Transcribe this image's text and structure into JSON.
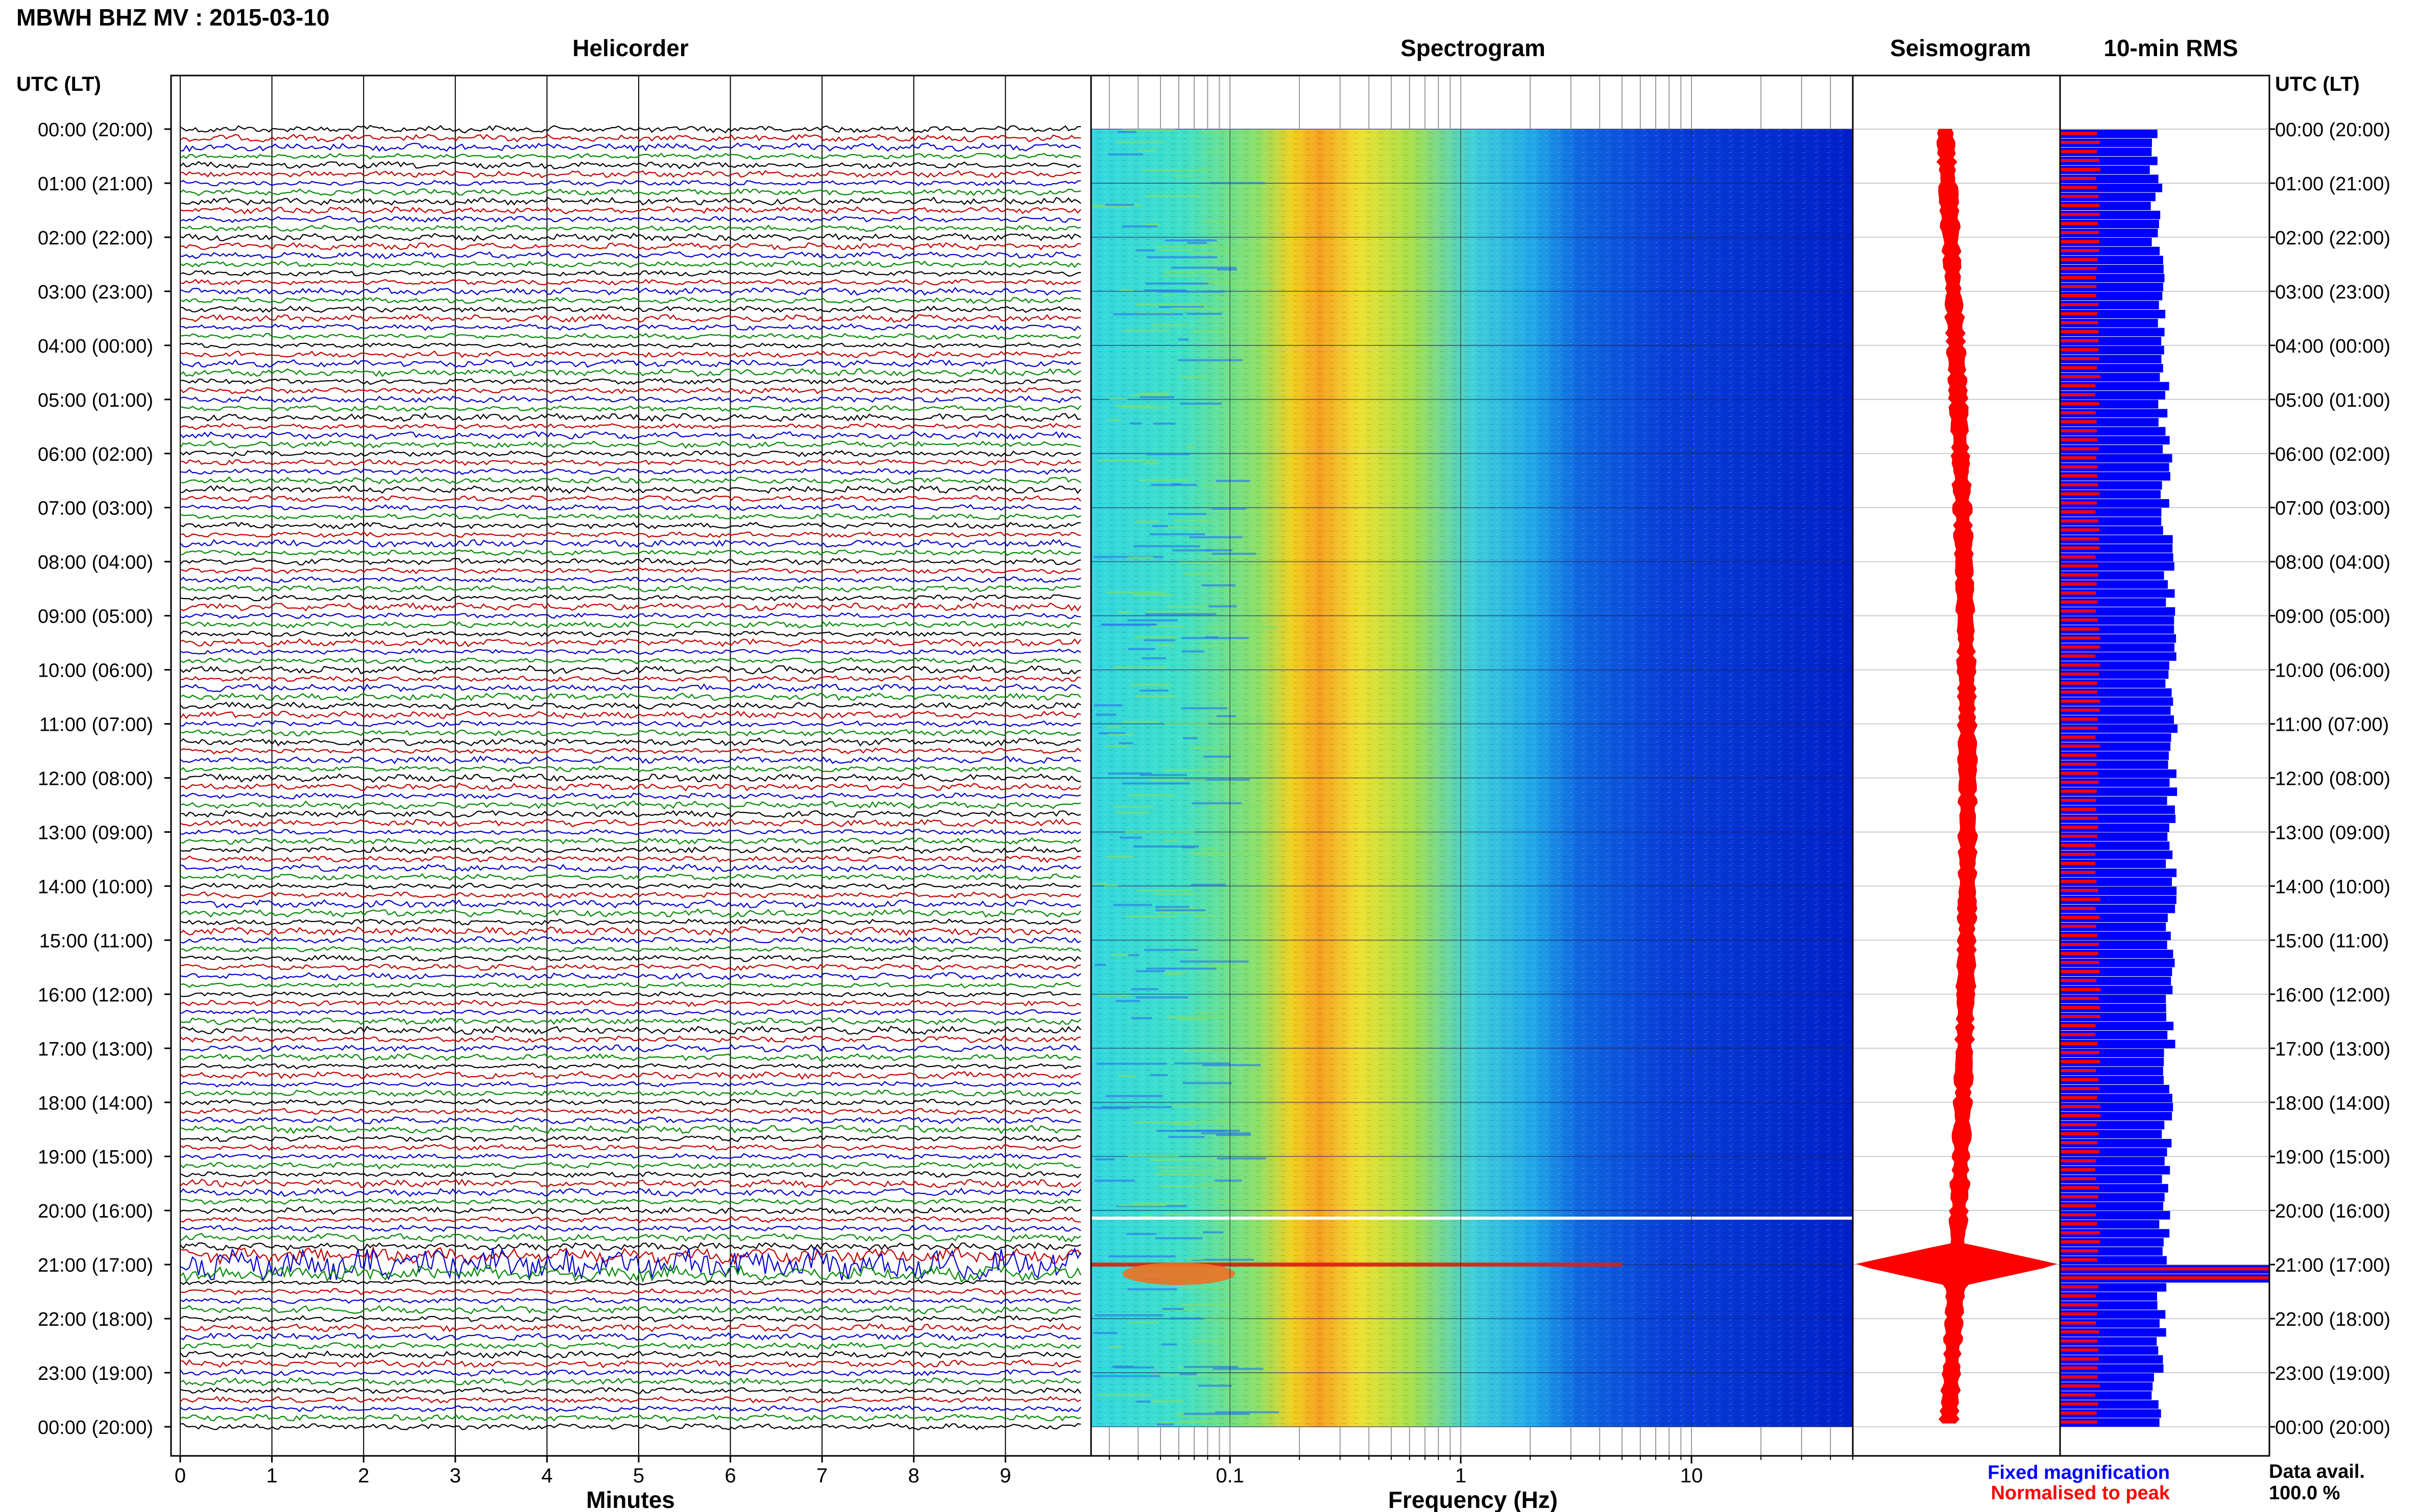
{
  "header": {
    "station_title": "MBWH BHZ MV : 2015-03-10",
    "time_axis_label": "UTC (LT)"
  },
  "panels": {
    "helicorder": "Helicorder",
    "spectrogram": "Spectrogram",
    "seismogram": "Seismogram",
    "rms": "10-min RMS"
  },
  "chart_data": [
    {
      "type": "line",
      "name": "helicorder",
      "title": "Helicorder",
      "xlabel": "Minutes",
      "x_ticks": [
        "0",
        "1",
        "2",
        "3",
        "4",
        "5",
        "6",
        "7",
        "8",
        "9"
      ],
      "xlim": [
        0,
        10
      ],
      "rows_per_hour": 6,
      "trace_colors": [
        "#000000",
        "#c00000",
        "#0000cc",
        "#008800"
      ],
      "event": {
        "time_label": "21:00 (17:00)",
        "description_rows": "high amplitude traces around 21:00"
      }
    },
    {
      "type": "heatmap",
      "name": "spectrogram",
      "title": "Spectrogram",
      "xlabel": "Frequency (Hz)",
      "x_scale": "log",
      "x_ticks": [
        "0.1",
        "1",
        "10"
      ],
      "xlim": [
        0.025,
        50
      ],
      "data_gap_time": "20:00 (16:00)"
    },
    {
      "type": "line",
      "name": "seismogram",
      "title": "Seismogram",
      "color": "#ff0000"
    },
    {
      "type": "bar",
      "name": "rms",
      "title": "10-min RMS",
      "series": [
        {
          "name": "Fixed magnification",
          "color": "#0000ff"
        },
        {
          "name": "Normalised to peak",
          "color": "#ff0000"
        }
      ]
    }
  ],
  "time_labels": [
    "00:00 (20:00)",
    "01:00 (21:00)",
    "02:00 (22:00)",
    "03:00 (23:00)",
    "04:00 (00:00)",
    "05:00 (01:00)",
    "06:00 (02:00)",
    "07:00 (03:00)",
    "08:00 (04:00)",
    "09:00 (05:00)",
    "10:00 (06:00)",
    "11:00 (07:00)",
    "12:00 (08:00)",
    "13:00 (09:00)",
    "14:00 (10:00)",
    "15:00 (11:00)",
    "16:00 (12:00)",
    "17:00 (13:00)",
    "18:00 (14:00)",
    "19:00 (15:00)",
    "20:00 (16:00)",
    "21:00 (17:00)",
    "22:00 (18:00)",
    "23:00 (19:00)",
    "00:00 (20:00)"
  ],
  "legend": {
    "fixed": "Fixed magnification",
    "normalised": "Normalised to peak",
    "fixed_color": "#0000ff",
    "normalised_color": "#ff0000"
  },
  "availability": {
    "label": "Data avail.",
    "value": "100.0 %"
  }
}
